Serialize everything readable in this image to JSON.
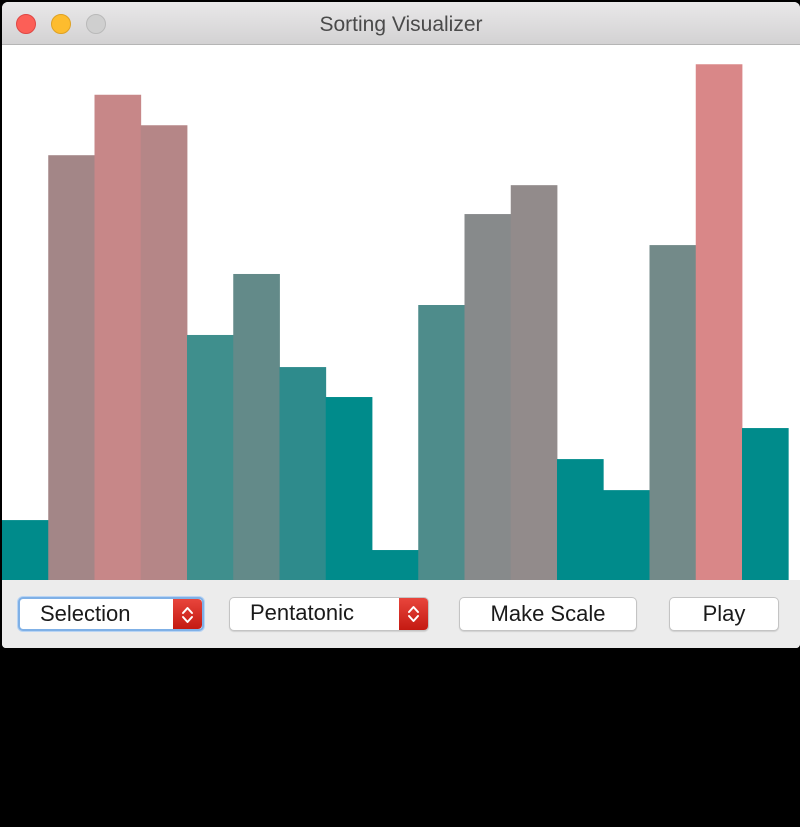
{
  "window": {
    "title": "Sorting Visualizer"
  },
  "controls": {
    "algorithm_value": "Selection",
    "scale_value": "Pentatonic",
    "make_scale_label": "Make Scale",
    "play_label": "Play"
  },
  "colors": {
    "canvas_background": "#ffffff",
    "low_bar": "#008b8b",
    "high_bar": "#db8888",
    "stepper_red": "#d42a20"
  },
  "chart_data": {
    "type": "bar",
    "ylim": [
      0,
      100
    ],
    "values": [
      11.2,
      79.4,
      90.7,
      85.0,
      45.8,
      57.2,
      39.8,
      34.2,
      5.6,
      51.4,
      68.4,
      73.8,
      22.6,
      16.8,
      62.6,
      96.4,
      28.4
    ],
    "bar_colors": [
      "#008b8b",
      "#a38687",
      "#c78788",
      "#b58687",
      "#3f8f8d",
      "#638a89",
      "#2e8b8c",
      "#008b8b",
      "#008b8b",
      "#4e8c8b",
      "#878a8b",
      "#928b8b",
      "#008b8b",
      "#008b8b",
      "#738a89",
      "#d98788",
      "#008b8b"
    ]
  }
}
